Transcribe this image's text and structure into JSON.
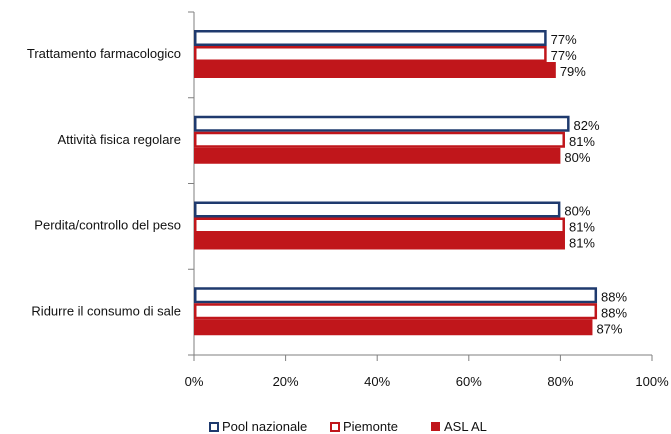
{
  "chart_data": {
    "type": "bar",
    "orientation": "horizontal",
    "categories": [
      "Trattamento farmacologico",
      "Attività fisica regolare",
      "Perdita/controllo del peso",
      "Ridurre il consumo di sale"
    ],
    "series": [
      {
        "name": "Pool nazionale",
        "values": [
          77,
          82,
          80,
          88
        ],
        "labels": [
          "77%",
          "82%",
          "80%",
          "88%"
        ],
        "style": "outline",
        "color": "#1f3a6e"
      },
      {
        "name": "Piemonte",
        "values": [
          77,
          81,
          81,
          88
        ],
        "labels": [
          "77%",
          "81%",
          "81%",
          "88%"
        ],
        "style": "outline",
        "color": "#c0161b"
      },
      {
        "name": "ASL AL",
        "values": [
          79,
          80,
          81,
          87
        ],
        "labels": [
          "79%",
          "80%",
          "81%",
          "87%"
        ],
        "style": "filled",
        "color": "#c0161b"
      }
    ],
    "xlim": [
      0,
      100
    ],
    "xticks": [
      0,
      20,
      40,
      60,
      80,
      100
    ],
    "xtick_labels": [
      "0%",
      "20%",
      "40%",
      "60%",
      "80%",
      "100%"
    ],
    "grid": false,
    "legend_position": "bottom-center"
  }
}
